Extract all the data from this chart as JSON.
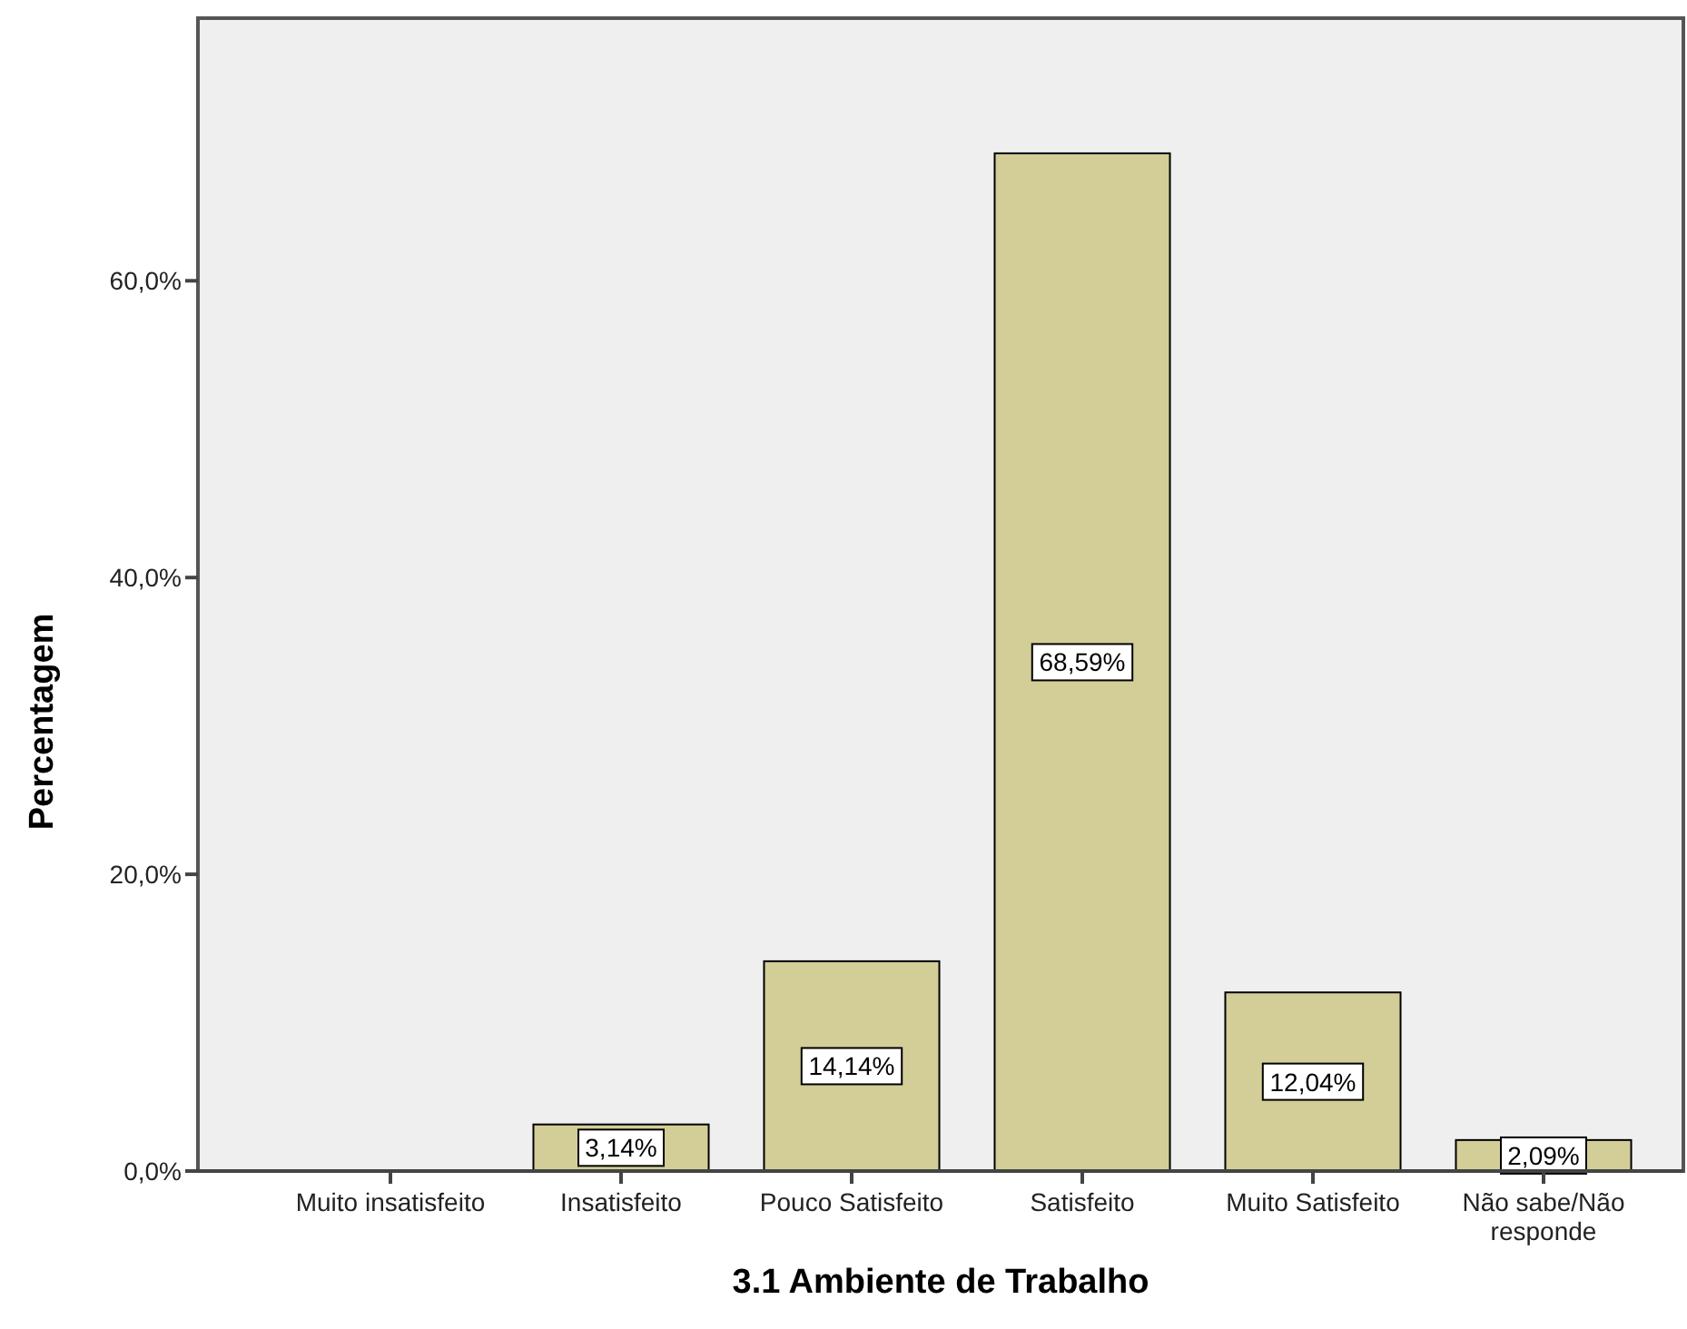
{
  "chart_data": {
    "type": "bar",
    "xlabel": "3.1 Ambiente de Trabalho",
    "ylabel": "Percentagem",
    "categories": [
      "Muito insatisfeito",
      "Insatisfeito",
      "Pouco Satisfeito",
      "Satisfeito",
      "Muito Satisfeito",
      "Não sabe/Não responde"
    ],
    "values": [
      0,
      3.14,
      14.14,
      68.59,
      12.04,
      2.09
    ],
    "value_labels": [
      null,
      "3,14%",
      "14,14%",
      "68,59%",
      "12,04%",
      "2,09%"
    ],
    "color": "#d3ce97",
    "ylim": [
      0,
      77.7
    ],
    "yticks": [
      {
        "value": 0,
        "label": "0,0%"
      },
      {
        "value": 20,
        "label": "20,0%"
      },
      {
        "value": 40,
        "label": "40,0%"
      },
      {
        "value": 60,
        "label": "60,0%"
      }
    ],
    "grid": false
  }
}
